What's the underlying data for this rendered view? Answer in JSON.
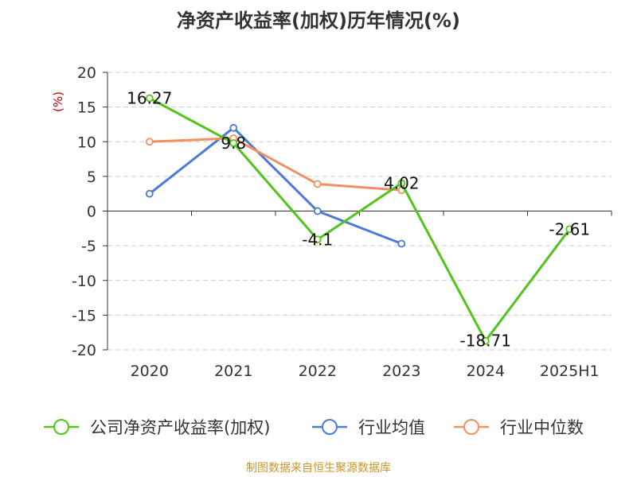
{
  "chart_data": {
    "type": "line",
    "title": "净资产收益率(加权)历年情况(%)",
    "ylabel": "(%)",
    "xlabel": "",
    "categories": [
      "2020",
      "2021",
      "2022",
      "2023",
      "2024",
      "2025H1"
    ],
    "ylim": [
      -20,
      20
    ],
    "yticks": [
      20,
      15,
      10,
      5,
      0,
      -5,
      -10,
      -15,
      -20
    ],
    "grid": true,
    "legend_position": "bottom",
    "series": [
      {
        "name": "公司净资产收益率(加权)",
        "color": "#52c41a",
        "values": [
          16.27,
          9.8,
          -4.1,
          4.02,
          -18.71,
          -2.61
        ],
        "labels": [
          "16.27",
          "9.8",
          "-4.1",
          "4.02",
          "-18.71",
          "-2.61"
        ]
      },
      {
        "name": "行业均值",
        "color": "#4a7bd6",
        "values": [
          2.5,
          12.0,
          0.0,
          -4.7,
          null,
          null
        ]
      },
      {
        "name": "行业中位数",
        "color": "#f39062",
        "values": [
          10.0,
          10.5,
          3.9,
          3.0,
          null,
          null
        ]
      }
    ]
  },
  "source_note": "制图数据来自恒生聚源数据库"
}
